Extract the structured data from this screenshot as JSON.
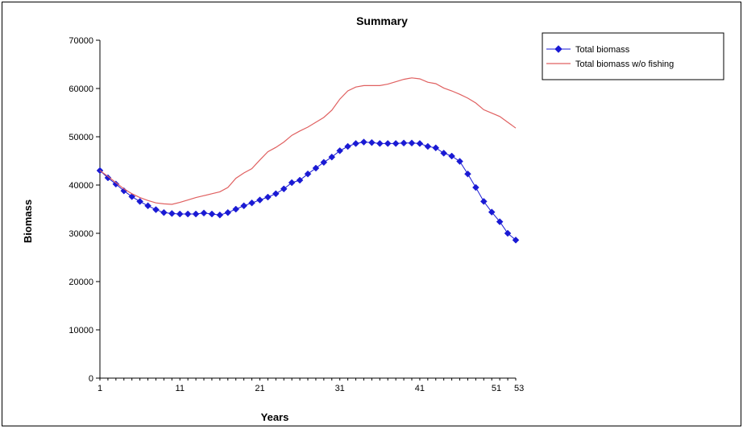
{
  "chart_data": {
    "type": "line",
    "title": "Summary",
    "xlabel": "Years",
    "ylabel": "Biomass",
    "xlim": [
      1,
      53
    ],
    "ylim": [
      0,
      70000
    ],
    "y_ticks": [
      0,
      10000,
      20000,
      30000,
      40000,
      50000,
      60000,
      70000
    ],
    "x_tick_labels": [
      "1",
      "11",
      "21",
      "31",
      "41",
      "51",
      "53"
    ],
    "grid": false,
    "legend_position": "top-right",
    "series": [
      {
        "name": "Total biomass",
        "color": "#1a1ad4",
        "marker": "diamond",
        "x": [
          1,
          2,
          3,
          4,
          5,
          6,
          7,
          8,
          9,
          10,
          11,
          12,
          13,
          14,
          15,
          16,
          17,
          18,
          19,
          20,
          21,
          22,
          23,
          24,
          25,
          26,
          27,
          28,
          29,
          30,
          31,
          32,
          33,
          34,
          35,
          36,
          37,
          38,
          39,
          40,
          41,
          42,
          43,
          44,
          45,
          46,
          47,
          48,
          49,
          50,
          51,
          52,
          53
        ],
        "values": [
          43000,
          41500,
          40200,
          38800,
          37600,
          36600,
          35700,
          34900,
          34300,
          34100,
          34000,
          34000,
          34000,
          34200,
          34000,
          33800,
          34300,
          35000,
          35700,
          36300,
          36900,
          37500,
          38200,
          39200,
          40500,
          41000,
          42300,
          43500,
          44700,
          45800,
          47100,
          48000,
          48600,
          48900,
          48800,
          48600,
          48600,
          48600,
          48700,
          48700,
          48600,
          48000,
          47700,
          46600,
          46000,
          44900,
          42300,
          39500,
          36600,
          34400,
          32400,
          30000,
          28600
        ]
      },
      {
        "name": "Total biomass w/o fishing",
        "color": "#e06060",
        "marker": "none",
        "x": [
          1,
          2,
          3,
          4,
          5,
          6,
          7,
          8,
          9,
          10,
          11,
          12,
          13,
          14,
          15,
          16,
          17,
          18,
          19,
          20,
          21,
          22,
          23,
          24,
          25,
          26,
          27,
          28,
          29,
          30,
          31,
          32,
          33,
          34,
          35,
          36,
          37,
          38,
          39,
          40,
          41,
          42,
          43,
          44,
          45,
          46,
          47,
          48,
          49,
          50,
          51,
          52,
          53
        ],
        "values": [
          43000,
          41800,
          40500,
          39200,
          38200,
          37400,
          36800,
          36300,
          36100,
          36000,
          36400,
          36900,
          37400,
          37800,
          38200,
          38600,
          39500,
          41400,
          42500,
          43400,
          45200,
          46900,
          47800,
          48900,
          50300,
          51200,
          52000,
          53000,
          54000,
          55500,
          57800,
          59500,
          60300,
          60600,
          60600,
          60600,
          60900,
          61400,
          61900,
          62200,
          62000,
          61300,
          61000,
          60100,
          59500,
          58800,
          58000,
          57000,
          55600,
          54900,
          54200,
          53000,
          51800
        ]
      }
    ]
  }
}
